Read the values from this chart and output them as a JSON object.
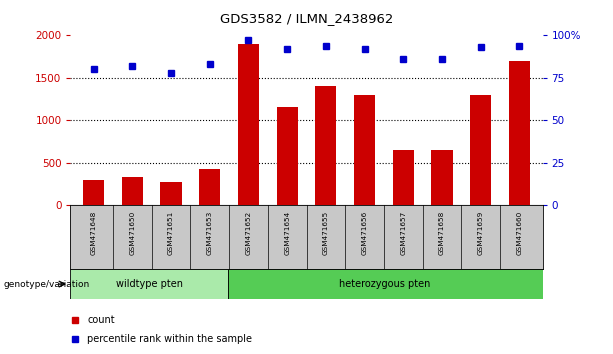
{
  "title": "GDS3582 / ILMN_2438962",
  "samples": [
    "GSM471648",
    "GSM471650",
    "GSM471651",
    "GSM471653",
    "GSM471652",
    "GSM471654",
    "GSM471655",
    "GSM471656",
    "GSM471657",
    "GSM471658",
    "GSM471659",
    "GSM471660"
  ],
  "counts": [
    300,
    330,
    270,
    430,
    1900,
    1160,
    1400,
    1300,
    650,
    650,
    1300,
    1700
  ],
  "percentiles": [
    80,
    82,
    78,
    83,
    97,
    92,
    94,
    92,
    86,
    86,
    93,
    94
  ],
  "bar_color": "#cc0000",
  "dot_color": "#0000cc",
  "left_ylim": [
    0,
    2000
  ],
  "left_yticks": [
    0,
    500,
    1000,
    1500,
    2000
  ],
  "left_yticklabels": [
    "0",
    "500",
    "1000",
    "1500",
    "2000"
  ],
  "right_ylim": [
    0,
    100
  ],
  "right_yticks": [
    0,
    25,
    50,
    75,
    100
  ],
  "right_yticklabels": [
    "0",
    "25",
    "50",
    "75",
    "100%"
  ],
  "wildtype_count": 4,
  "heterozygous_count": 8,
  "wildtype_label": "wildtype pten",
  "heterozygous_label": "heterozygous pten",
  "genotype_label": "genotype/variation",
  "legend_count_label": "count",
  "legend_pct_label": "percentile rank within the sample",
  "bg_color_plot": "#ffffff",
  "bg_color_samples": "#c8c8c8",
  "bg_color_wildtype": "#aaeaaa",
  "bg_color_heterozygous": "#55cc55",
  "left_tick_color": "#cc0000",
  "right_tick_color": "#0000cc",
  "grid_dotted_ticks": [
    500,
    1000,
    1500
  ]
}
